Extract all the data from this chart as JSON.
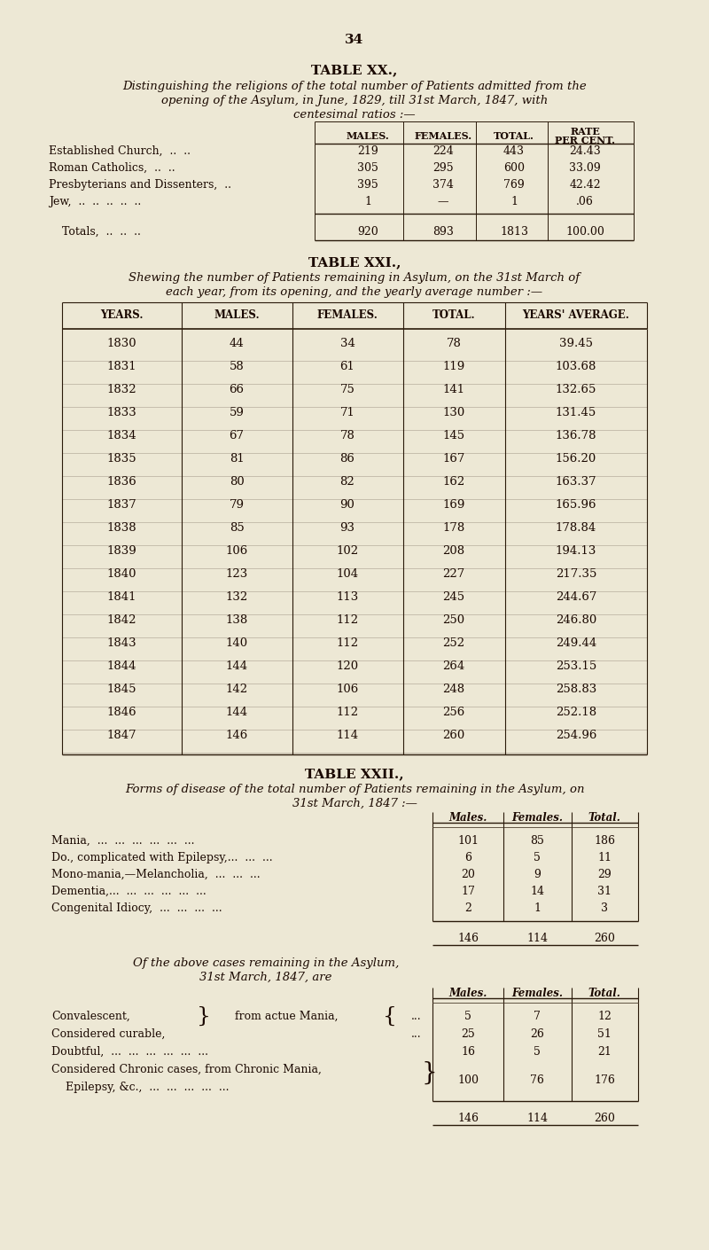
{
  "bg_color": "#ede8d5",
  "text_color": "#1a0800",
  "line_color": "#2a1a0a",
  "page_number": "34",
  "table20": {
    "title": "TABLE XX.,",
    "subtitle1": "Distinguishing the religions of the total number of Patients admitted from the",
    "subtitle2": "opening of the Asylum, in June, 1829, till 31st March, 1847, with",
    "subtitle3": "centesimal ratios :—",
    "rows": [
      [
        "Established Church,  ..  ..",
        "219",
        "224",
        "443",
        "24.43"
      ],
      [
        "Roman Catholics,  ..  ..",
        "305",
        "295",
        "600",
        "33.09"
      ],
      [
        "Presbyterians and Dissenters,  ..",
        "395",
        "374",
        "769",
        "42.42"
      ],
      [
        "Jew,  ..  ..  ..  ..  ..",
        "1",
        "—",
        "1",
        ".06"
      ]
    ],
    "totals": [
      "Totals,  ..  ..  ..",
      "920",
      "893",
      "1813",
      "100.00"
    ]
  },
  "table21": {
    "title": "TABLE XXI.,",
    "subtitle1": "Shewing the number of Patients remaining in Asylum, on the 31st March of",
    "subtitle2": "each year, from its opening, and the yearly average number :—",
    "rows": [
      [
        "1830",
        "44",
        "34",
        "78",
        "39.45"
      ],
      [
        "1831",
        "58",
        "61",
        "119",
        "103.68"
      ],
      [
        "1832",
        "66",
        "75",
        "141",
        "132.65"
      ],
      [
        "1833",
        "59",
        "71",
        "130",
        "131.45"
      ],
      [
        "1834",
        "67",
        "78",
        "145",
        "136.78"
      ],
      [
        "1835",
        "81",
        "86",
        "167",
        "156.20"
      ],
      [
        "1836",
        "80",
        "82",
        "162",
        "163.37"
      ],
      [
        "1837",
        "79",
        "90",
        "169",
        "165.96"
      ],
      [
        "1838",
        "85",
        "93",
        "178",
        "178.84"
      ],
      [
        "1839",
        "106",
        "102",
        "208",
        "194.13"
      ],
      [
        "1840",
        "123",
        "104",
        "227",
        "217.35"
      ],
      [
        "1841",
        "132",
        "113",
        "245",
        "244.67"
      ],
      [
        "1842",
        "138",
        "112",
        "250",
        "246.80"
      ],
      [
        "1843",
        "140",
        "112",
        "252",
        "249.44"
      ],
      [
        "1844",
        "144",
        "120",
        "264",
        "253.15"
      ],
      [
        "1845",
        "142",
        "106",
        "248",
        "258.83"
      ],
      [
        "1846",
        "144",
        "112",
        "256",
        "252.18"
      ],
      [
        "1847",
        "146",
        "114",
        "260",
        "254.96"
      ]
    ]
  },
  "table22": {
    "title": "TABLE XXII.,",
    "subtitle1": "Forms of disease of the total number of Patients remaining in the Asylum, on",
    "subtitle2": "31st March, 1847 :—",
    "rows": [
      [
        "Mania,  ...  ...  ...  ...  ...  ...",
        "101",
        "85",
        "186"
      ],
      [
        "Do., complicated with Epilepsy,...  ...  ...",
        "6",
        "5",
        "11"
      ],
      [
        "Mono-mania,—Melancholia,  ...  ...  ...",
        "20",
        "9",
        "29"
      ],
      [
        "Dementia,...  ...  ...  ...  ...  ...",
        "17",
        "14",
        "31"
      ],
      [
        "Congenital Idiocy,  ...  ...  ...  ...",
        "2",
        "1",
        "3"
      ]
    ],
    "totals": [
      "146",
      "114",
      "260"
    ],
    "sub_title1": "Of the above cases remaining in the Asylum,",
    "sub_title2": "31st March, 1847, are",
    "sub_rows": [
      [
        "Convalescent,",
        "5",
        "7",
        "12"
      ],
      [
        "Considered curable,",
        "25",
        "26",
        "51"
      ],
      [
        "Doubtful,  ...  ...  ...  ...  ...  ...",
        "16",
        "5",
        "21"
      ],
      [
        "Considered Chronic cases, from Chronic Mania,",
        "100",
        "76",
        "176"
      ],
      [
        "    Epilepsy, &c.,  ...  ...  ...  ...  ...",
        "",
        "",
        ""
      ]
    ],
    "sub_totals": [
      "146",
      "114",
      "260"
    ]
  }
}
